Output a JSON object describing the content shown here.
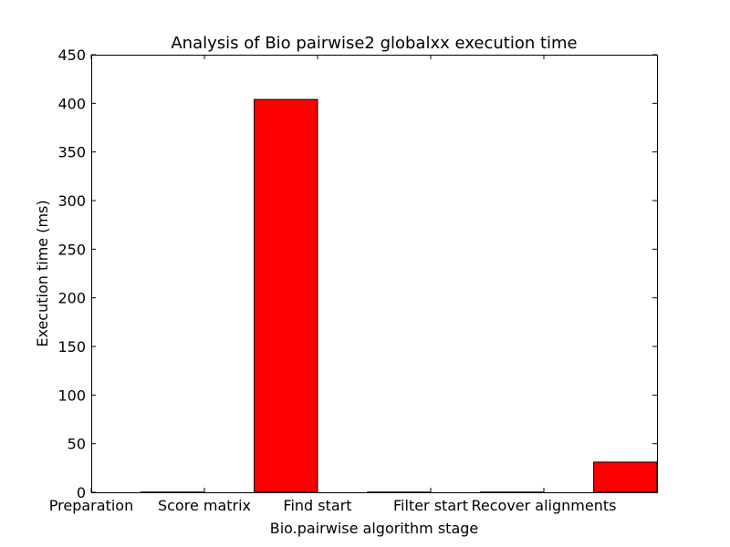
{
  "chart_data": {
    "type": "bar",
    "title": "Analysis of Bio pairwise2 globalxx execution time",
    "xlabel": "Bio.pairwise algorithm stage",
    "ylabel": "Execution time (ms)",
    "categories": [
      "Preparation",
      "Score matrix",
      "Find start",
      "Filter start",
      "Recover alignments"
    ],
    "values": [
      0.3,
      404,
      0.3,
      0.3,
      31
    ],
    "ylim": [
      0,
      450
    ],
    "yticks": [
      "0",
      "50",
      "100",
      "150",
      "200",
      "250",
      "300",
      "350",
      "400",
      "450"
    ],
    "bar_color": "#ff0000",
    "edge_color": "#000000",
    "grid": false,
    "legend": "none"
  }
}
